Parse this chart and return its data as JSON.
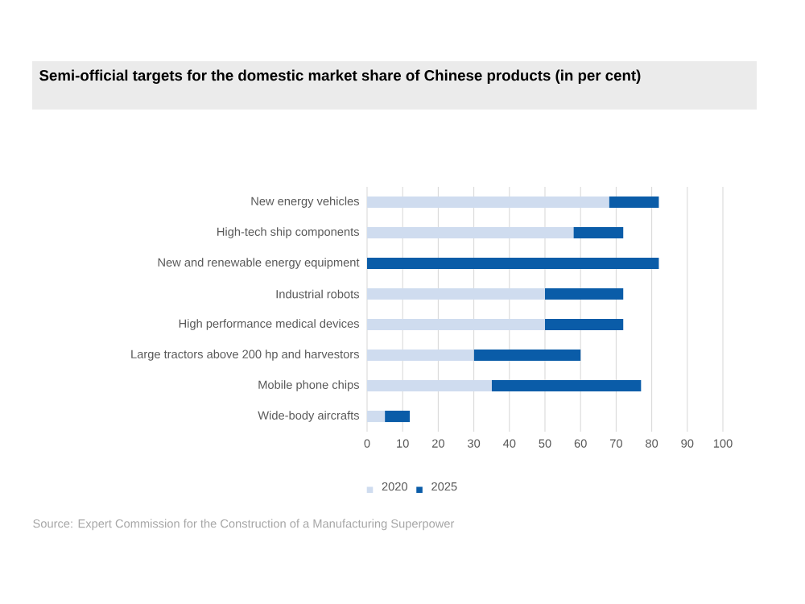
{
  "chart_data": {
    "type": "bar",
    "orientation": "horizontal",
    "stacked": true,
    "title": "Semi-official targets for the domestic market share of Chinese products (in per cent)",
    "categories": [
      "New energy vehicles",
      "High-tech ship components",
      "New and renewable energy equipment",
      "Industrial robots",
      "High performance medical devices",
      "Large tractors above 200 hp and harvestors",
      "Mobile phone chips",
      "Wide-body aircrafts"
    ],
    "series": [
      {
        "name": "2020",
        "color": "#cfdcef",
        "values": [
          68,
          58,
          0,
          50,
          50,
          30,
          35,
          5
        ]
      },
      {
        "name": "2025",
        "color": "#0a5ca8",
        "values": [
          14,
          14,
          82,
          22,
          22,
          30,
          42,
          7
        ]
      }
    ],
    "xlim": [
      0,
      100
    ],
    "xticks": [
      0,
      10,
      20,
      30,
      40,
      50,
      60,
      70,
      80,
      90,
      100
    ],
    "grid": "x",
    "legend": "bottom left",
    "annotations": [
      "Source: Expert Commission for the Construction of a Manufacturing  Superpower"
    ]
  }
}
